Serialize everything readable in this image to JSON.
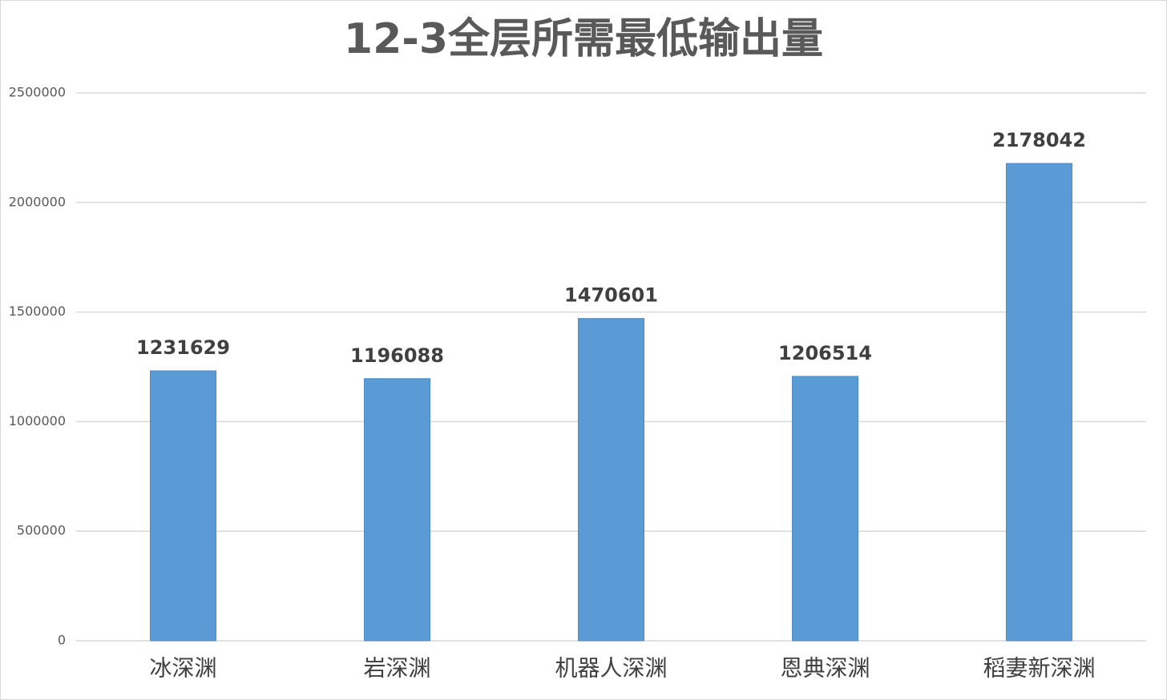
{
  "chart_data": {
    "type": "bar",
    "title": "12-3全层所需最低输出量",
    "categories": [
      "冰深渊",
      "岩深渊",
      "机器人深渊",
      "恩典深渊",
      "稻妻新深渊"
    ],
    "values": [
      1231629,
      1196088,
      1470601,
      1206514,
      2178042
    ],
    "color": "#5b9bd5",
    "ylim": [
      0,
      2500000
    ],
    "yticks": [
      0,
      500000,
      1000000,
      1500000,
      2000000,
      2500000
    ],
    "grid": true
  }
}
